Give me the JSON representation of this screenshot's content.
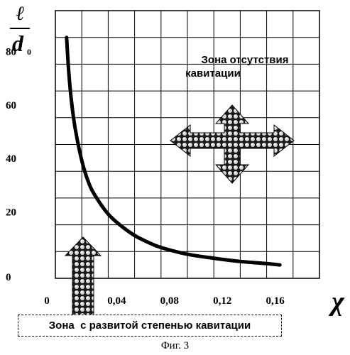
{
  "chart_data": {
    "type": "line",
    "title": "",
    "xlabel": "χ",
    "ylabel_numerator": "ℓ",
    "ylabel_denominator": "d",
    "ylabel_subscript": "0",
    "x_ticks": [
      "0",
      "0,04",
      "0,08",
      "0,12",
      "0,16"
    ],
    "y_ticks": [
      "0",
      "20",
      "40",
      "60",
      "80"
    ],
    "xlim": [
      0,
      0.2
    ],
    "ylim": [
      0,
      100
    ],
    "grid": true,
    "series": [
      {
        "x": [
          0.0085,
          0.01,
          0.012,
          0.015,
          0.02,
          0.025,
          0.03,
          0.04,
          0.05,
          0.06,
          0.07,
          0.08,
          0.1,
          0.12,
          0.14,
          0.16,
          0.17
        ],
        "y": [
          90,
          78,
          67,
          56,
          44,
          36,
          31,
          24,
          19.5,
          16,
          13.5,
          11.5,
          9,
          7.5,
          6.3,
          5.5,
          5
        ]
      }
    ],
    "annotations": {
      "zone_no_cavitation": [
        "Зона отсутствия",
        "кавитации"
      ],
      "zone_developed_cavitation": "Зона  с развитой степенью кавитации"
    }
  },
  "caption": "Фиг. 3"
}
